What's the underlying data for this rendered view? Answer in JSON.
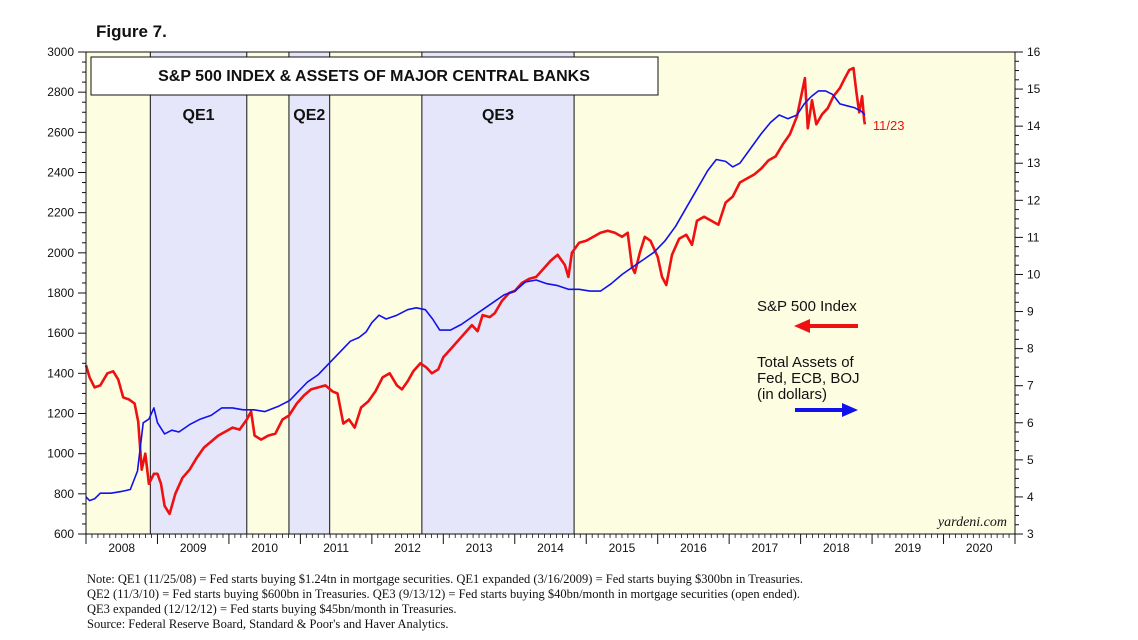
{
  "figure_label": "Figure 7.",
  "chart_data": {
    "type": "line",
    "title": "S&P 500 INDEX & ASSETS OF MAJOR CENTRAL BANKS",
    "watermark": "yardeni.com",
    "end_label": "11/23",
    "x_years": [
      "2008",
      "2009",
      "2010",
      "2011",
      "2012",
      "2013",
      "2014",
      "2015",
      "2016",
      "2017",
      "2018",
      "2019",
      "2020"
    ],
    "x_range": [
      2008.0,
      2021.0
    ],
    "left_axis": {
      "range": [
        600,
        3000
      ],
      "ticks": [
        600,
        800,
        1000,
        1200,
        1400,
        1600,
        1800,
        2000,
        2200,
        2400,
        2600,
        2800,
        3000
      ]
    },
    "right_axis": {
      "range": [
        3,
        16
      ],
      "ticks": [
        3,
        4,
        5,
        6,
        7,
        8,
        9,
        10,
        11,
        12,
        13,
        14,
        15,
        16
      ]
    },
    "shaded_periods": [
      {
        "label": "QE1",
        "start": 2008.9,
        "end": 2010.25,
        "color": "#e6e6fa"
      },
      {
        "label": "QE2",
        "start": 2010.84,
        "end": 2011.41,
        "color": "#e6e6fa"
      },
      {
        "label": "QE3",
        "start": 2012.7,
        "end": 2014.83,
        "color": "#e6e6fa"
      }
    ],
    "background_color": "#fdfde2",
    "series": [
      {
        "name": "S&P 500 Index",
        "axis": "left",
        "color": "#ee1111",
        "points": [
          [
            2008.0,
            1440
          ],
          [
            2008.05,
            1380
          ],
          [
            2008.12,
            1330
          ],
          [
            2008.2,
            1340
          ],
          [
            2008.3,
            1400
          ],
          [
            2008.38,
            1410
          ],
          [
            2008.45,
            1370
          ],
          [
            2008.52,
            1280
          ],
          [
            2008.6,
            1270
          ],
          [
            2008.68,
            1250
          ],
          [
            2008.73,
            1160
          ],
          [
            2008.78,
            920
          ],
          [
            2008.83,
            1000
          ],
          [
            2008.88,
            850
          ],
          [
            2008.95,
            900
          ],
          [
            2009.0,
            900
          ],
          [
            2009.05,
            850
          ],
          [
            2009.1,
            740
          ],
          [
            2009.17,
            700
          ],
          [
            2009.25,
            800
          ],
          [
            2009.35,
            880
          ],
          [
            2009.45,
            920
          ],
          [
            2009.55,
            980
          ],
          [
            2009.65,
            1030
          ],
          [
            2009.75,
            1060
          ],
          [
            2009.85,
            1090
          ],
          [
            2009.95,
            1110
          ],
          [
            2010.05,
            1130
          ],
          [
            2010.15,
            1120
          ],
          [
            2010.25,
            1170
          ],
          [
            2010.31,
            1210
          ],
          [
            2010.36,
            1090
          ],
          [
            2010.45,
            1070
          ],
          [
            2010.55,
            1090
          ],
          [
            2010.65,
            1100
          ],
          [
            2010.75,
            1170
          ],
          [
            2010.84,
            1190
          ],
          [
            2010.95,
            1250
          ],
          [
            2011.05,
            1290
          ],
          [
            2011.15,
            1320
          ],
          [
            2011.25,
            1330
          ],
          [
            2011.35,
            1340
          ],
          [
            2011.45,
            1310
          ],
          [
            2011.52,
            1300
          ],
          [
            2011.6,
            1150
          ],
          [
            2011.68,
            1170
          ],
          [
            2011.76,
            1130
          ],
          [
            2011.85,
            1230
          ],
          [
            2011.95,
            1260
          ],
          [
            2012.05,
            1310
          ],
          [
            2012.15,
            1380
          ],
          [
            2012.25,
            1400
          ],
          [
            2012.35,
            1340
          ],
          [
            2012.42,
            1320
          ],
          [
            2012.5,
            1360
          ],
          [
            2012.58,
            1410
          ],
          [
            2012.68,
            1450
          ],
          [
            2012.76,
            1430
          ],
          [
            2012.84,
            1400
          ],
          [
            2012.93,
            1420
          ],
          [
            2013.0,
            1480
          ],
          [
            2013.1,
            1520
          ],
          [
            2013.2,
            1560
          ],
          [
            2013.3,
            1600
          ],
          [
            2013.4,
            1640
          ],
          [
            2013.48,
            1610
          ],
          [
            2013.55,
            1690
          ],
          [
            2013.65,
            1680
          ],
          [
            2013.72,
            1700
          ],
          [
            2013.82,
            1760
          ],
          [
            2013.92,
            1800
          ],
          [
            2014.0,
            1810
          ],
          [
            2014.1,
            1850
          ],
          [
            2014.2,
            1870
          ],
          [
            2014.3,
            1880
          ],
          [
            2014.4,
            1920
          ],
          [
            2014.5,
            1960
          ],
          [
            2014.6,
            1990
          ],
          [
            2014.7,
            1940
          ],
          [
            2014.75,
            1880
          ],
          [
            2014.8,
            2000
          ],
          [
            2014.9,
            2050
          ],
          [
            2015.0,
            2060
          ],
          [
            2015.1,
            2080
          ],
          [
            2015.2,
            2100
          ],
          [
            2015.3,
            2110
          ],
          [
            2015.4,
            2100
          ],
          [
            2015.5,
            2080
          ],
          [
            2015.58,
            2100
          ],
          [
            2015.64,
            1930
          ],
          [
            2015.68,
            1900
          ],
          [
            2015.75,
            2000
          ],
          [
            2015.82,
            2080
          ],
          [
            2015.9,
            2060
          ],
          [
            2016.0,
            1980
          ],
          [
            2016.06,
            1880
          ],
          [
            2016.12,
            1840
          ],
          [
            2016.2,
            1990
          ],
          [
            2016.3,
            2070
          ],
          [
            2016.4,
            2090
          ],
          [
            2016.48,
            2040
          ],
          [
            2016.55,
            2160
          ],
          [
            2016.65,
            2180
          ],
          [
            2016.75,
            2160
          ],
          [
            2016.85,
            2140
          ],
          [
            2016.95,
            2250
          ],
          [
            2017.05,
            2280
          ],
          [
            2017.15,
            2350
          ],
          [
            2017.25,
            2370
          ],
          [
            2017.35,
            2390
          ],
          [
            2017.45,
            2420
          ],
          [
            2017.55,
            2460
          ],
          [
            2017.65,
            2480
          ],
          [
            2017.75,
            2540
          ],
          [
            2017.85,
            2590
          ],
          [
            2017.95,
            2680
          ],
          [
            2018.02,
            2800
          ],
          [
            2018.06,
            2870
          ],
          [
            2018.1,
            2620
          ],
          [
            2018.16,
            2760
          ],
          [
            2018.22,
            2640
          ],
          [
            2018.3,
            2690
          ],
          [
            2018.38,
            2720
          ],
          [
            2018.46,
            2780
          ],
          [
            2018.55,
            2820
          ],
          [
            2018.62,
            2870
          ],
          [
            2018.68,
            2910
          ],
          [
            2018.74,
            2920
          ],
          [
            2018.78,
            2800
          ],
          [
            2018.82,
            2700
          ],
          [
            2018.86,
            2780
          ],
          [
            2018.89,
            2660
          ],
          [
            2018.9,
            2640
          ]
        ]
      },
      {
        "name": "Total Assets of Fed, ECB, BOJ (in dollars)",
        "axis": "right",
        "color": "#1111ee",
        "points": [
          [
            2008.0,
            4.0
          ],
          [
            2008.05,
            3.9
          ],
          [
            2008.12,
            3.95
          ],
          [
            2008.2,
            4.1
          ],
          [
            2008.35,
            4.1
          ],
          [
            2008.5,
            4.15
          ],
          [
            2008.62,
            4.2
          ],
          [
            2008.72,
            4.7
          ],
          [
            2008.8,
            6.0
          ],
          [
            2008.88,
            6.1
          ],
          [
            2008.95,
            6.4
          ],
          [
            2009.0,
            6.0
          ],
          [
            2009.1,
            5.7
          ],
          [
            2009.2,
            5.8
          ],
          [
            2009.3,
            5.75
          ],
          [
            2009.45,
            5.95
          ],
          [
            2009.6,
            6.1
          ],
          [
            2009.75,
            6.2
          ],
          [
            2009.9,
            6.4
          ],
          [
            2010.05,
            6.4
          ],
          [
            2010.2,
            6.35
          ],
          [
            2010.35,
            6.35
          ],
          [
            2010.5,
            6.3
          ],
          [
            2010.7,
            6.45
          ],
          [
            2010.85,
            6.6
          ],
          [
            2010.95,
            6.8
          ],
          [
            2011.1,
            7.1
          ],
          [
            2011.25,
            7.3
          ],
          [
            2011.4,
            7.6
          ],
          [
            2011.55,
            7.9
          ],
          [
            2011.7,
            8.2
          ],
          [
            2011.82,
            8.3
          ],
          [
            2011.92,
            8.45
          ],
          [
            2012.0,
            8.7
          ],
          [
            2012.1,
            8.9
          ],
          [
            2012.2,
            8.8
          ],
          [
            2012.35,
            8.9
          ],
          [
            2012.5,
            9.05
          ],
          [
            2012.62,
            9.1
          ],
          [
            2012.75,
            9.05
          ],
          [
            2012.85,
            8.8
          ],
          [
            2012.95,
            8.5
          ],
          [
            2013.1,
            8.5
          ],
          [
            2013.25,
            8.65
          ],
          [
            2013.4,
            8.85
          ],
          [
            2013.55,
            9.05
          ],
          [
            2013.7,
            9.25
          ],
          [
            2013.85,
            9.45
          ],
          [
            2014.0,
            9.55
          ],
          [
            2014.15,
            9.8
          ],
          [
            2014.3,
            9.85
          ],
          [
            2014.45,
            9.75
          ],
          [
            2014.6,
            9.7
          ],
          [
            2014.75,
            9.6
          ],
          [
            2014.9,
            9.6
          ],
          [
            2015.05,
            9.55
          ],
          [
            2015.2,
            9.55
          ],
          [
            2015.35,
            9.75
          ],
          [
            2015.5,
            10.0
          ],
          [
            2015.65,
            10.2
          ],
          [
            2015.8,
            10.4
          ],
          [
            2015.95,
            10.6
          ],
          [
            2016.1,
            10.9
          ],
          [
            2016.25,
            11.3
          ],
          [
            2016.4,
            11.8
          ],
          [
            2016.55,
            12.3
          ],
          [
            2016.7,
            12.8
          ],
          [
            2016.82,
            13.1
          ],
          [
            2016.95,
            13.05
          ],
          [
            2017.05,
            12.9
          ],
          [
            2017.15,
            13.0
          ],
          [
            2017.3,
            13.4
          ],
          [
            2017.45,
            13.8
          ],
          [
            2017.58,
            14.1
          ],
          [
            2017.7,
            14.3
          ],
          [
            2017.82,
            14.2
          ],
          [
            2017.95,
            14.3
          ],
          [
            2018.05,
            14.6
          ],
          [
            2018.15,
            14.8
          ],
          [
            2018.25,
            14.95
          ],
          [
            2018.35,
            14.95
          ],
          [
            2018.45,
            14.85
          ],
          [
            2018.55,
            14.6
          ],
          [
            2018.65,
            14.55
          ],
          [
            2018.75,
            14.5
          ],
          [
            2018.85,
            14.4
          ],
          [
            2018.9,
            14.3
          ]
        ]
      }
    ],
    "legend": [
      {
        "label": "S&P 500 Index",
        "arrow": "left",
        "color": "#ee1111"
      },
      {
        "label_lines": [
          "Total Assets of",
          "Fed, ECB, BOJ",
          "(in dollars)"
        ],
        "arrow": "right",
        "color": "#1111ee"
      }
    ]
  },
  "notes": [
    "Note: QE1 (11/25/08) = Fed starts buying $1.24tn in mortgage securities. QE1 expanded (3/16/2009) = Fed starts buying $300bn in Treasuries.",
    "QE2 (11/3/10) = Fed starts buying $600bn in Treasuries. QE3 (9/13/12) = Fed starts buying $40bn/month in mortgage securities (open ended).",
    "QE3 expanded (12/12/12) = Fed starts buying $45bn/month in Treasuries.",
    "Source: Federal Reserve Board, Standard & Poor's and Haver Analytics."
  ]
}
